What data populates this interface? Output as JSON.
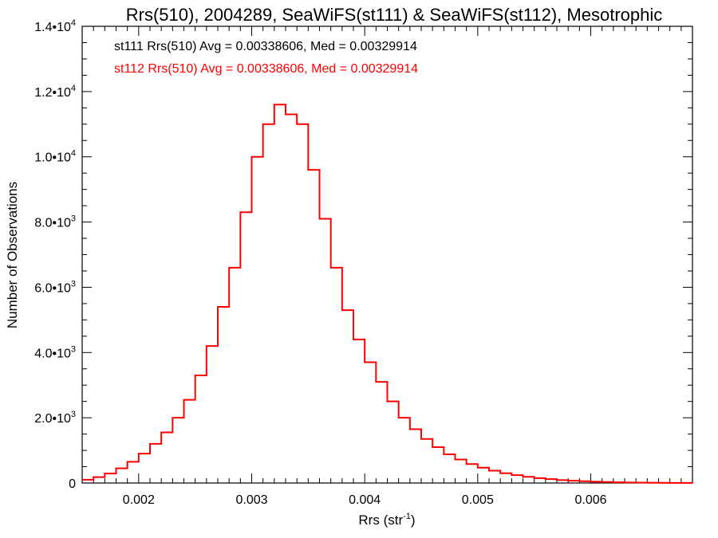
{
  "chart_data": {
    "type": "histogram",
    "title": "Rrs(510), 2004289, SeaWiFS(st111) & SeaWiFS(st112), Mesotrophic",
    "xlabel": "Rrs (str",
    "xlabel_superscript": "-1",
    "xlabel_suffix": ")",
    "ylabel": "Number of Observations",
    "xlim": [
      0.0015,
      0.0069
    ],
    "ylim": [
      0,
      14000
    ],
    "x_ticks": [
      {
        "value": 0.002,
        "label": "0.002"
      },
      {
        "value": 0.003,
        "label": "0.003"
      },
      {
        "value": 0.004,
        "label": "0.004"
      },
      {
        "value": 0.005,
        "label": "0.005"
      },
      {
        "value": 0.006,
        "label": "0.006"
      }
    ],
    "y_ticks": [
      {
        "value": 0,
        "mantissa": "0",
        "exp": ""
      },
      {
        "value": 2000,
        "mantissa": "2.0•10",
        "exp": "3"
      },
      {
        "value": 4000,
        "mantissa": "4.0•10",
        "exp": "3"
      },
      {
        "value": 6000,
        "mantissa": "6.0•10",
        "exp": "3"
      },
      {
        "value": 8000,
        "mantissa": "8.0•10",
        "exp": "3"
      },
      {
        "value": 10000,
        "mantissa": "1.0•10",
        "exp": "4"
      },
      {
        "value": 12000,
        "mantissa": "1.2•10",
        "exp": "4"
      },
      {
        "value": 14000,
        "mantissa": "1.4•10",
        "exp": "4"
      }
    ],
    "annotations": [
      {
        "text": "st111 Rrs(510) Avg = 0.00338606, Med = 0.00329914",
        "color": "#000000"
      },
      {
        "text": "st112 Rrs(510) Avg = 0.00338606, Med = 0.00329914",
        "color": "#ff0000"
      }
    ],
    "series": [
      {
        "color": "#ff0000",
        "step": "post",
        "x": [
          0.0015,
          0.0016,
          0.0017,
          0.0018,
          0.0019,
          0.002,
          0.0021,
          0.0022,
          0.0023,
          0.0024,
          0.0025,
          0.0026,
          0.0027,
          0.0028,
          0.0029,
          0.003,
          0.0031,
          0.0032,
          0.0033,
          0.0034,
          0.0035,
          0.0036,
          0.0037,
          0.0038,
          0.0039,
          0.004,
          0.0041,
          0.0042,
          0.0043,
          0.0044,
          0.0045,
          0.0046,
          0.0047,
          0.0048,
          0.0049,
          0.005,
          0.0051,
          0.0052,
          0.0053,
          0.0054,
          0.0055,
          0.0056,
          0.0057,
          0.0058,
          0.0059,
          0.006,
          0.0061,
          0.0062,
          0.0063,
          0.0064,
          0.0065,
          0.0066,
          0.0067,
          0.0068,
          0.0069
        ],
        "values": [
          100,
          180,
          290,
          450,
          650,
          900,
          1200,
          1550,
          2000,
          2550,
          3300,
          4200,
          5400,
          6600,
          8300,
          10000,
          11000,
          11600,
          11300,
          11000,
          9600,
          8100,
          6600,
          5300,
          4400,
          3700,
          3100,
          2500,
          2000,
          1650,
          1350,
          1100,
          880,
          720,
          580,
          470,
          380,
          300,
          240,
          190,
          150,
          120,
          90,
          70,
          55,
          40,
          30,
          22,
          16,
          12,
          9,
          6,
          4,
          3,
          2
        ]
      }
    ]
  }
}
